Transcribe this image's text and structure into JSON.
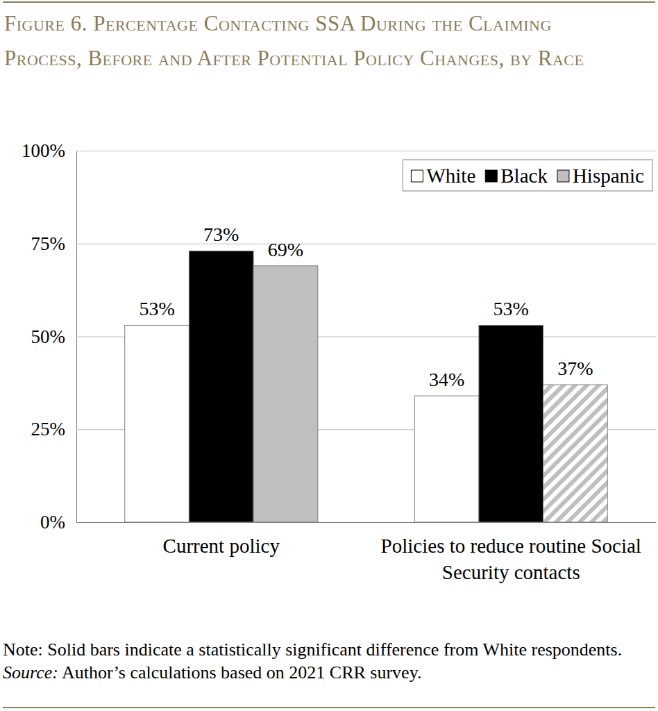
{
  "chart_data": {
    "type": "bar",
    "title": "Figure 6. Percentage Contacting SSA During the Claiming Process, Before and After Potential Policy Changes, by Race",
    "categories": [
      "Current policy",
      "Policies to reduce routine Social Security contacts"
    ],
    "series": [
      {
        "name": "White",
        "color": "#ffffff",
        "values": [
          53,
          34
        ],
        "value_labels": [
          "53%",
          "34%"
        ]
      },
      {
        "name": "Black",
        "color": "#000000",
        "values": [
          73,
          53
        ],
        "value_labels": [
          "73%",
          "53%"
        ],
        "significant": [
          true,
          true
        ]
      },
      {
        "name": "Hispanic",
        "color": "#bfbfbf",
        "values": [
          69,
          37
        ],
        "value_labels": [
          "69%",
          "37%"
        ],
        "significant": [
          true,
          false
        ]
      }
    ],
    "ylim": [
      0,
      100
    ],
    "yticks": [
      {
        "value": 0,
        "label": "0%"
      },
      {
        "value": 25,
        "label": "25%"
      },
      {
        "value": 50,
        "label": "50%"
      },
      {
        "value": 75,
        "label": "75%"
      },
      {
        "value": 100,
        "label": "100%"
      }
    ],
    "grid": true,
    "legend": "top-right",
    "data_labels": true,
    "note": "Note: Solid bars indicate a statistically significant difference from White respondents.",
    "source": "Source: Author’s calculations based on 2021 CRR survey."
  }
}
